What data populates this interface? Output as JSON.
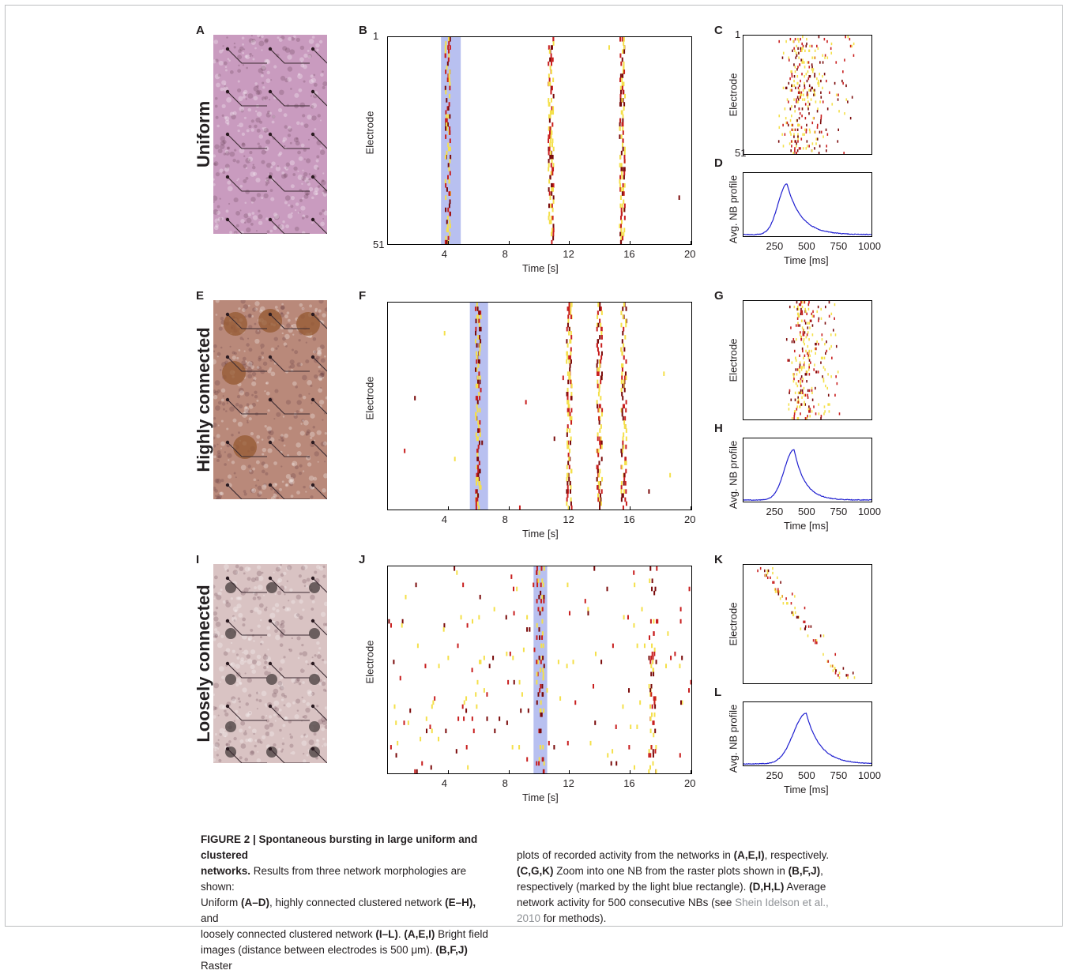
{
  "rows": [
    {
      "row_label": "Uniform",
      "panel_labels": {
        "image": "A",
        "raster": "B",
        "zoom": "C",
        "profile": "D"
      },
      "raster_y_ticks": [
        "1",
        "51"
      ],
      "zoom_y_ticks": [
        "1",
        "51"
      ]
    },
    {
      "row_label": "Highly connected",
      "panel_labels": {
        "image": "E",
        "raster": "F",
        "zoom": "G",
        "profile": "H"
      },
      "raster_y_ticks": [],
      "zoom_y_ticks": []
    },
    {
      "row_label": "Loosely connected",
      "panel_labels": {
        "image": "I",
        "raster": "J",
        "zoom": "K",
        "profile": "L"
      },
      "raster_y_ticks": [],
      "zoom_y_ticks": []
    }
  ],
  "axis_text": {
    "electrode": "Electrode",
    "time_s": "Time [s]",
    "time_ms": "Time [ms]",
    "profile": "Avg. NB profile"
  },
  "chart_data": [
    {
      "type": "scatter",
      "panel": "B",
      "subtype": "raster",
      "xlabel": "Time [s]",
      "ylabel": "Electrode",
      "xlim": [
        0,
        20
      ],
      "ylim": [
        1,
        51
      ],
      "x_ticks": [
        4,
        8,
        12,
        16,
        20
      ],
      "burst_times": [
        3.9,
        10.7,
        15.4
      ],
      "highlight": [
        3.5,
        4.8
      ]
    },
    {
      "type": "scatter",
      "panel": "C",
      "subtype": "raster-zoom",
      "ylabel": "Electrode",
      "ylim": [
        1,
        51
      ]
    },
    {
      "type": "line",
      "panel": "D",
      "xlabel": "Time [ms]",
      "ylabel": "Avg. NB profile",
      "xlim": [
        0,
        1000
      ],
      "x_ticks": [
        250,
        500,
        750,
        1000
      ],
      "peak_x": 340,
      "rise": 70,
      "decay": 110,
      "series": [
        {
          "color": "#2020d0"
        }
      ]
    },
    {
      "type": "scatter",
      "panel": "F",
      "subtype": "raster",
      "xlabel": "Time [s]",
      "ylabel": "Electrode",
      "xlim": [
        0,
        20
      ],
      "x_ticks": [
        4,
        8,
        12,
        16,
        20
      ],
      "burst_times": [
        5.9,
        11.9,
        13.9,
        15.5
      ],
      "highlight": [
        5.4,
        6.6
      ]
    },
    {
      "type": "scatter",
      "panel": "G",
      "subtype": "raster-zoom",
      "ylabel": "Electrode"
    },
    {
      "type": "line",
      "panel": "H",
      "xlabel": "Time [ms]",
      "ylabel": "Avg. NB profile",
      "xlim": [
        0,
        1000
      ],
      "x_ticks": [
        250,
        500,
        750,
        1000
      ],
      "peak_x": 395,
      "rise": 75,
      "decay": 85,
      "series": [
        {
          "color": "#2020d0"
        }
      ]
    },
    {
      "type": "scatter",
      "panel": "J",
      "subtype": "raster",
      "xlabel": "Time [s]",
      "ylabel": "Electrode",
      "xlim": [
        0,
        20
      ],
      "x_ticks": [
        4,
        8,
        12,
        16,
        20
      ],
      "burst_times": [
        10.0,
        17.4
      ],
      "highlight": [
        9.6,
        10.5
      ]
    },
    {
      "type": "scatter",
      "panel": "K",
      "subtype": "raster-zoom",
      "ylabel": "Electrode"
    },
    {
      "type": "line",
      "panel": "L",
      "xlabel": "Time [ms]",
      "ylabel": "Avg. NB profile",
      "xlim": [
        0,
        1000
      ],
      "x_ticks": [
        250,
        500,
        750,
        1000
      ],
      "peak_x": 490,
      "rise": 100,
      "decay": 110,
      "series": [
        {
          "color": "#2020d0"
        }
      ]
    }
  ],
  "colors": {
    "spike_dark": "#7a0a0a",
    "spike_red": "#c81e1e",
    "spike_yellow": "#f4e04a",
    "highlight": "#b8c0f0",
    "profile_line": "#2020d0",
    "photo_uniform": "#c99bbf",
    "photo_highly": "#b9897a",
    "photo_loosely": "#d9c3c3"
  },
  "caption": {
    "fig_label": "FIGURE 2 | Spontaneous bursting in large uniform and clustered",
    "fig_label_2": "networks.",
    "left_lines": [
      " Results from three network morphologies are shown:",
      "Uniform ",
      "(A–D)",
      ", highly connected clustered network ",
      "(E–H),",
      " and",
      "loosely connected clustered network ",
      "(I–L)",
      ". ",
      "(A,E,I)",
      " Bright field",
      "images (distance between electrodes is 500 μm). ",
      "(B,F,J)",
      " Raster"
    ],
    "right_1a": "plots of recorded activity from the networks in ",
    "right_1b": "(A,E,I)",
    "right_1c": ", respectively.",
    "right_2a": "(C,G,K)",
    "right_2b": " Zoom into one NB from the raster plots shown in ",
    "right_2c": "(B,F,J)",
    "right_2d": ",",
    "right_3": "respectively (marked by the light blue rectangle). ",
    "right_3b": "(D,H,L)",
    "right_3c": " Average",
    "right_4": "network activity for 500 consecutive NBs (see ",
    "right_4b": "Shein Idelson et al.,",
    "right_5a": "2010",
    "right_5b": " for methods)."
  }
}
